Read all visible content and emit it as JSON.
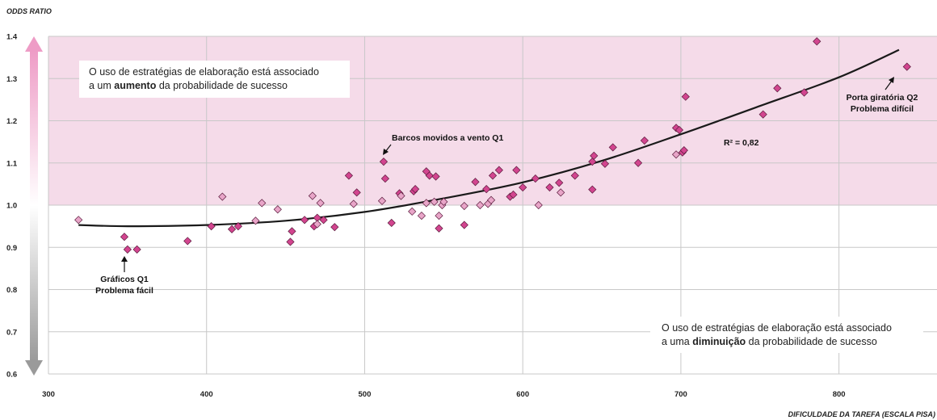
{
  "colors": {
    "shaded_band": "#f5dbe9",
    "point_dark": "#d2458f",
    "point_light": "#e8a5c8",
    "point_edge": "#5a1a3c",
    "trend_line": "#1a1a1a",
    "grid": "#c8c8c8",
    "arrow_top": "#ee9cc6",
    "arrow_bottom": "#9a9a9a"
  },
  "chart_data": {
    "type": "scatter",
    "ylabel": "ODDS RATIO",
    "xlabel": "DIFICULDADE DA TAREFA (ESCALA PISA)",
    "xlim": [
      300,
      862
    ],
    "ylim": [
      0.6,
      1.4
    ],
    "x_ticks": [
      300,
      400,
      500,
      600,
      700,
      800
    ],
    "y_ticks": [
      0.6,
      0.7,
      0.8,
      0.9,
      1.0,
      1.1,
      1.2,
      1.3,
      1.4
    ],
    "x_tick_labels": [
      "300",
      "400",
      "500",
      "600",
      "700",
      "800"
    ],
    "y_tick_labels": [
      "0.6",
      "0.7",
      "0.8",
      "0.9",
      "1.0",
      "1.1",
      "1.2",
      "1.3",
      "1.4"
    ],
    "grid": true,
    "shaded_region": {
      "y_from": 1.0,
      "y_to": 1.4
    },
    "series": [
      {
        "style": "dark",
        "points": [
          [
            348,
            0.925
          ],
          [
            350,
            0.895
          ],
          [
            356,
            0.895
          ],
          [
            388,
            0.915
          ],
          [
            403,
            0.95
          ],
          [
            416,
            0.943
          ],
          [
            420,
            0.95
          ],
          [
            453,
            0.913
          ],
          [
            454,
            0.938
          ],
          [
            462,
            0.965
          ],
          [
            468,
            0.95
          ],
          [
            470,
            0.97
          ],
          [
            474,
            0.965
          ],
          [
            481,
            0.948
          ],
          [
            490,
            1.07
          ],
          [
            495,
            1.03
          ],
          [
            512,
            1.103
          ],
          [
            513,
            1.063
          ],
          [
            517,
            0.958
          ],
          [
            522,
            1.028
          ],
          [
            531,
            1.033
          ],
          [
            532,
            1.038
          ],
          [
            539,
            1.08
          ],
          [
            541,
            1.07
          ],
          [
            545,
            1.068
          ],
          [
            547,
            0.945
          ],
          [
            563,
            0.953
          ],
          [
            570,
            1.055
          ],
          [
            577,
            1.038
          ],
          [
            581,
            1.07
          ],
          [
            585,
            1.083
          ],
          [
            592,
            1.02
          ],
          [
            594,
            1.025
          ],
          [
            596,
            1.083
          ],
          [
            600,
            1.042
          ],
          [
            608,
            1.063
          ],
          [
            617,
            1.042
          ],
          [
            623,
            1.053
          ],
          [
            633,
            1.07
          ],
          [
            644,
            1.037
          ],
          [
            644,
            1.103
          ],
          [
            645,
            1.117
          ],
          [
            652,
            1.098
          ],
          [
            657,
            1.137
          ],
          [
            673,
            1.1
          ],
          [
            677,
            1.153
          ],
          [
            697,
            1.183
          ],
          [
            699,
            1.178
          ],
          [
            701,
            1.125
          ],
          [
            702,
            1.13
          ],
          [
            703,
            1.257
          ],
          [
            752,
            1.215
          ],
          [
            761,
            1.277
          ],
          [
            778,
            1.267
          ],
          [
            786,
            1.388
          ],
          [
            843,
            1.328
          ]
        ]
      },
      {
        "style": "light",
        "points": [
          [
            319,
            0.965
          ],
          [
            410,
            1.02
          ],
          [
            431,
            0.963
          ],
          [
            435,
            1.005
          ],
          [
            445,
            0.99
          ],
          [
            467,
            1.022
          ],
          [
            470,
            0.955
          ],
          [
            472,
            1.005
          ],
          [
            493,
            1.003
          ],
          [
            511,
            1.01
          ],
          [
            523,
            1.022
          ],
          [
            530,
            0.985
          ],
          [
            536,
            0.975
          ],
          [
            539,
            1.005
          ],
          [
            544,
            1.008
          ],
          [
            547,
            0.975
          ],
          [
            549,
            1.0
          ],
          [
            550,
            1.008
          ],
          [
            563,
            0.998
          ],
          [
            573,
            1.0
          ],
          [
            578,
            1.003
          ],
          [
            580,
            1.012
          ],
          [
            610,
            1.0
          ],
          [
            624,
            1.03
          ],
          [
            697,
            1.12
          ]
        ]
      }
    ],
    "trend_curve": [
      [
        319,
        0.953
      ],
      [
        350,
        0.95
      ],
      [
        400,
        0.953
      ],
      [
        450,
        0.963
      ],
      [
        500,
        0.984
      ],
      [
        550,
        1.016
      ],
      [
        600,
        1.054
      ],
      [
        650,
        1.105
      ],
      [
        700,
        1.168
      ],
      [
        750,
        1.235
      ],
      [
        800,
        1.303
      ],
      [
        838,
        1.368
      ]
    ],
    "annotations": {
      "r_squared": "R² = 0,82",
      "barcos": "Barcos movidos a vento Q1",
      "graficos_line1": "Gráficos Q1",
      "graficos_line2": "Problema fácil",
      "porta_line1": "Porta giratória Q2",
      "porta_line2": "Problema difícil"
    },
    "box_top": {
      "line1": "O uso de estratégias de elaboração está associado",
      "line2_pre": "a um ",
      "line2_bold": "aumento",
      "line2_post": " da probabilidade de sucesso"
    },
    "box_bottom": {
      "line1": "O uso de estratégias de elaboração está associado",
      "line2_pre": "a uma ",
      "line2_bold": "diminuição",
      "line2_post": " da probabilidade de sucesso"
    }
  }
}
